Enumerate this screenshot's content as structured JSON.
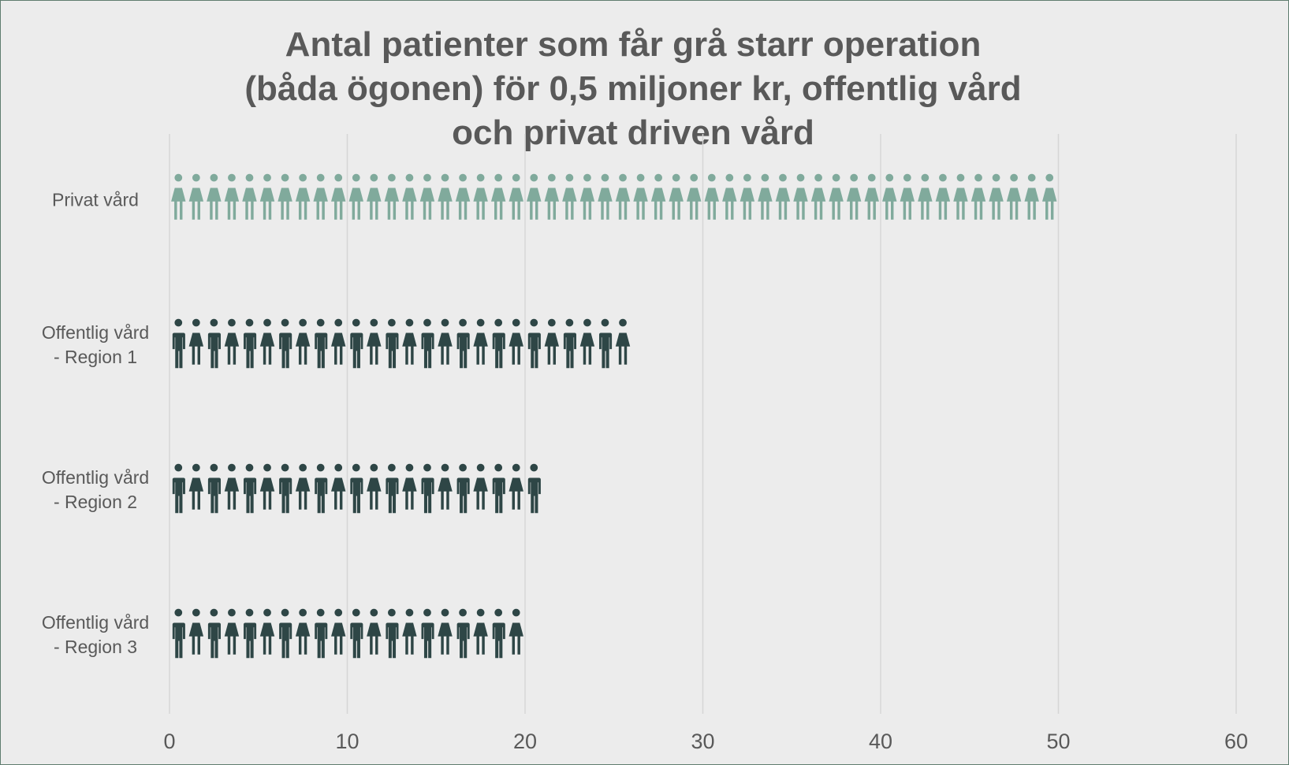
{
  "chart_data": {
    "type": "pictograph-bar",
    "title": "Antal patienter som får grå starr operation (båda ögonen) för 0,5 miljoner kr, offentlig vård och privat driven vård",
    "categories": [
      "Privat vård",
      "Offentlig vård - Region 1",
      "Offentlig vård - Region 2",
      "Offentlig vård - Region 3"
    ],
    "values": [
      50,
      26,
      21,
      20
    ],
    "colors": [
      "#80aa9c",
      "#2e4646",
      "#2e4646",
      "#2e4646"
    ],
    "xlim": [
      0,
      60
    ],
    "xticks": [
      0,
      10,
      20,
      30,
      40,
      50,
      60
    ],
    "grid": true
  }
}
